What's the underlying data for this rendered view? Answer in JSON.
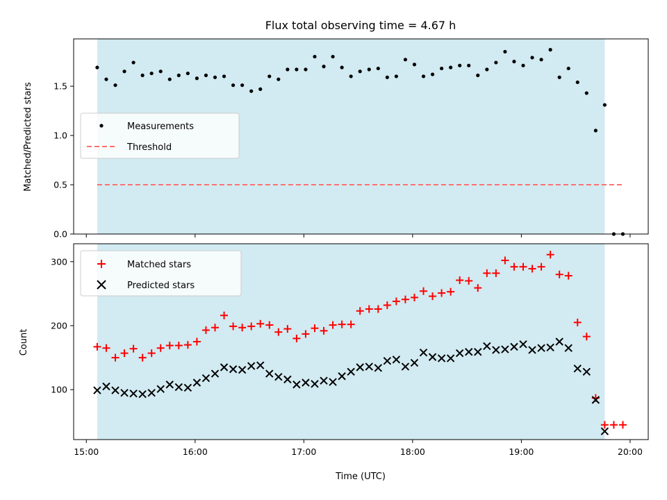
{
  "chart_data": [
    {
      "type": "scatter",
      "title": "Flux total observing time = 4.67 h",
      "xlabel": "",
      "ylabel": "Matched/Predicted stars",
      "xlim": [
        "14:53",
        "20:10"
      ],
      "ylim": [
        0,
        1.98
      ],
      "x_ticks": [
        "15:00",
        "16:00",
        "17:00",
        "18:00",
        "19:00",
        "20:00"
      ],
      "y_ticks": [
        "0.0",
        "0.5",
        "1.0",
        "1.5"
      ],
      "grid": false,
      "legend_position": "center-left",
      "shaded_span": [
        "15:06",
        "19:46"
      ],
      "shaded_color": "#add8e6",
      "series": [
        {
          "name": "Measurements",
          "marker": "dot",
          "color": "#000000",
          "points": [
            [
              "15:06",
              1.69
            ],
            [
              "15:11",
              1.57
            ],
            [
              "15:16",
              1.51
            ],
            [
              "15:21",
              1.65
            ],
            [
              "15:26",
              1.74
            ],
            [
              "15:31",
              1.61
            ],
            [
              "15:36",
              1.63
            ],
            [
              "15:41",
              1.65
            ],
            [
              "15:46",
              1.57
            ],
            [
              "15:51",
              1.61
            ],
            [
              "15:56",
              1.63
            ],
            [
              "16:01",
              1.58
            ],
            [
              "16:06",
              1.61
            ],
            [
              "16:11",
              1.59
            ],
            [
              "16:16",
              1.6
            ],
            [
              "16:21",
              1.51
            ],
            [
              "16:26",
              1.51
            ],
            [
              "16:31",
              1.45
            ],
            [
              "16:36",
              1.47
            ],
            [
              "16:41",
              1.6
            ],
            [
              "16:46",
              1.57
            ],
            [
              "16:51",
              1.67
            ],
            [
              "16:56",
              1.67
            ],
            [
              "17:01",
              1.67
            ],
            [
              "17:06",
              1.8
            ],
            [
              "17:11",
              1.7
            ],
            [
              "17:16",
              1.8
            ],
            [
              "17:21",
              1.69
            ],
            [
              "17:26",
              1.6
            ],
            [
              "17:31",
              1.65
            ],
            [
              "17:36",
              1.67
            ],
            [
              "17:41",
              1.68
            ],
            [
              "17:46",
              1.59
            ],
            [
              "17:51",
              1.6
            ],
            [
              "17:56",
              1.77
            ],
            [
              "18:01",
              1.72
            ],
            [
              "18:06",
              1.6
            ],
            [
              "18:11",
              1.62
            ],
            [
              "18:16",
              1.68
            ],
            [
              "18:21",
              1.69
            ],
            [
              "18:26",
              1.71
            ],
            [
              "18:31",
              1.71
            ],
            [
              "18:36",
              1.61
            ],
            [
              "18:41",
              1.67
            ],
            [
              "18:46",
              1.74
            ],
            [
              "18:51",
              1.85
            ],
            [
              "18:56",
              1.75
            ],
            [
              "19:01",
              1.71
            ],
            [
              "19:06",
              1.79
            ],
            [
              "19:11",
              1.77
            ],
            [
              "19:16",
              1.87
            ],
            [
              "19:21",
              1.59
            ],
            [
              "19:26",
              1.68
            ],
            [
              "19:31",
              1.54
            ],
            [
              "19:36",
              1.43
            ],
            [
              "19:41",
              1.05
            ],
            [
              "19:46",
              1.31
            ],
            [
              "19:51",
              0.0
            ],
            [
              "19:56",
              0.0
            ]
          ]
        },
        {
          "name": "Threshold",
          "marker": "dashed-line",
          "color": "#ff7070",
          "points": [
            [
              "15:06",
              0.5
            ],
            [
              "19:56",
              0.5
            ]
          ]
        }
      ]
    },
    {
      "type": "scatter",
      "title": "",
      "xlabel": "Time (UTC)",
      "ylabel": "Count",
      "xlim": [
        "14:53",
        "20:10"
      ],
      "ylim": [
        22,
        328
      ],
      "x_ticks": [
        "15:00",
        "16:00",
        "17:00",
        "18:00",
        "19:00",
        "20:00"
      ],
      "y_ticks": [
        "100",
        "200",
        "300"
      ],
      "grid": false,
      "legend_position": "top-left",
      "shaded_span": [
        "15:06",
        "19:46"
      ],
      "shaded_color": "#add8e6",
      "series": [
        {
          "name": "Matched stars",
          "marker": "plus",
          "color": "#ff0000",
          "points": [
            [
              "15:06",
              167
            ],
            [
              "15:11",
              165
            ],
            [
              "15:16",
              150
            ],
            [
              "15:21",
              157
            ],
            [
              "15:26",
              164
            ],
            [
              "15:31",
              150
            ],
            [
              "15:36",
              157
            ],
            [
              "15:41",
              165
            ],
            [
              "15:46",
              169
            ],
            [
              "15:51",
              169
            ],
            [
              "15:56",
              170
            ],
            [
              "16:01",
              175
            ],
            [
              "16:06",
              193
            ],
            [
              "16:11",
              197
            ],
            [
              "16:16",
              216
            ],
            [
              "16:21",
              199
            ],
            [
              "16:26",
              197
            ],
            [
              "16:31",
              199
            ],
            [
              "16:36",
              203
            ],
            [
              "16:41",
              201
            ],
            [
              "16:46",
              190
            ],
            [
              "16:51",
              195
            ],
            [
              "16:56",
              180
            ],
            [
              "17:01",
              187
            ],
            [
              "17:06",
              196
            ],
            [
              "17:11",
              192
            ],
            [
              "17:16",
              201
            ],
            [
              "17:21",
              202
            ],
            [
              "17:26",
              202
            ],
            [
              "17:31",
              223
            ],
            [
              "17:36",
              226
            ],
            [
              "17:41",
              226
            ],
            [
              "17:46",
              232
            ],
            [
              "17:51",
              238
            ],
            [
              "17:56",
              241
            ],
            [
              "18:01",
              244
            ],
            [
              "18:06",
              254
            ],
            [
              "18:11",
              246
            ],
            [
              "18:16",
              251
            ],
            [
              "18:21",
              253
            ],
            [
              "18:26",
              271
            ],
            [
              "18:31",
              270
            ],
            [
              "18:36",
              259
            ],
            [
              "18:41",
              282
            ],
            [
              "18:46",
              282
            ],
            [
              "18:51",
              302
            ],
            [
              "18:56",
              292
            ],
            [
              "19:01",
              292
            ],
            [
              "19:06",
              289
            ],
            [
              "19:11",
              292
            ],
            [
              "19:16",
              311
            ],
            [
              "19:21",
              280
            ],
            [
              "19:26",
              278
            ],
            [
              "19:31",
              205
            ],
            [
              "19:36",
              183
            ],
            [
              "19:41",
              87
            ],
            [
              "19:46",
              45
            ],
            [
              "19:51",
              45
            ],
            [
              "19:56",
              45
            ]
          ]
        },
        {
          "name": "Predicted stars",
          "marker": "x",
          "color": "#000000",
          "points": [
            [
              "15:06",
              99
            ],
            [
              "15:11",
              105
            ],
            [
              "15:16",
              99
            ],
            [
              "15:21",
              95
            ],
            [
              "15:26",
              94
            ],
            [
              "15:31",
              93
            ],
            [
              "15:36",
              95
            ],
            [
              "15:41",
              101
            ],
            [
              "15:46",
              108
            ],
            [
              "15:51",
              104
            ],
            [
              "15:56",
              103
            ],
            [
              "16:01",
              111
            ],
            [
              "16:06",
              118
            ],
            [
              "16:11",
              125
            ],
            [
              "16:16",
              135
            ],
            [
              "16:21",
              132
            ],
            [
              "16:26",
              131
            ],
            [
              "16:31",
              137
            ],
            [
              "16:36",
              138
            ],
            [
              "16:41",
              125
            ],
            [
              "16:46",
              120
            ],
            [
              "16:51",
              116
            ],
            [
              "16:56",
              108
            ],
            [
              "17:01",
              111
            ],
            [
              "17:06",
              109
            ],
            [
              "17:11",
              114
            ],
            [
              "17:16",
              112
            ],
            [
              "17:21",
              121
            ],
            [
              "17:26",
              128
            ],
            [
              "17:31",
              135
            ],
            [
              "17:36",
              136
            ],
            [
              "17:41",
              134
            ],
            [
              "17:46",
              145
            ],
            [
              "17:51",
              147
            ],
            [
              "17:56",
              136
            ],
            [
              "18:01",
              142
            ],
            [
              "18:06",
              158
            ],
            [
              "18:11",
              151
            ],
            [
              "18:16",
              149
            ],
            [
              "18:21",
              149
            ],
            [
              "18:26",
              157
            ],
            [
              "18:31",
              159
            ],
            [
              "18:36",
              159
            ],
            [
              "18:41",
              168
            ],
            [
              "18:46",
              162
            ],
            [
              "18:51",
              163
            ],
            [
              "18:56",
              167
            ],
            [
              "19:01",
              171
            ],
            [
              "19:06",
              162
            ],
            [
              "19:11",
              165
            ],
            [
              "19:16",
              166
            ],
            [
              "19:21",
              175
            ],
            [
              "19:26",
              165
            ],
            [
              "19:31",
              133
            ],
            [
              "19:36",
              128
            ],
            [
              "19:41",
              84
            ],
            [
              "19:46",
              35
            ]
          ]
        }
      ]
    }
  ]
}
